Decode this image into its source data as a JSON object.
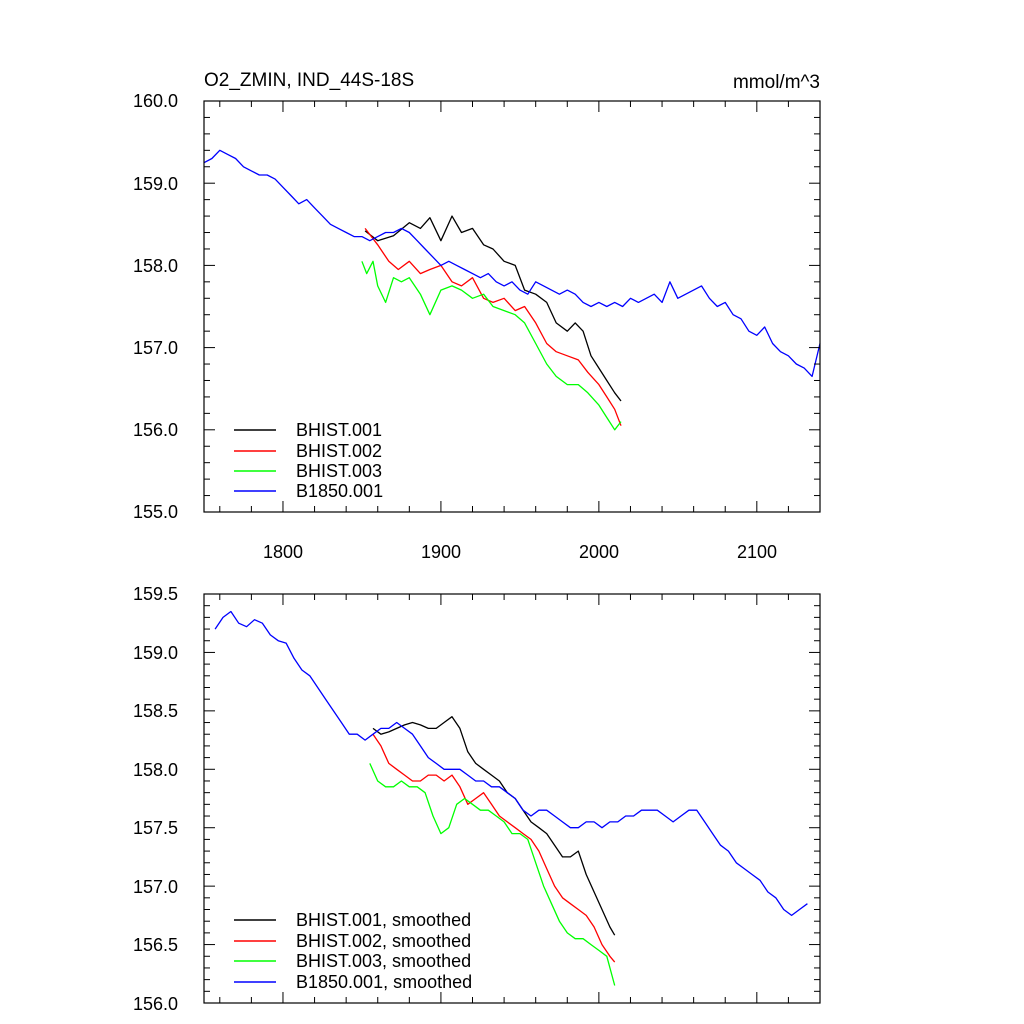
{
  "chart_data": [
    {
      "type": "line",
      "title_left": "O2_ZMIN, IND_44S-18S",
      "title_right": "mmol/m^3",
      "xlim": [
        1750,
        2140
      ],
      "ylim": [
        155.0,
        160.0
      ],
      "xticks": [
        1800,
        1900,
        2000,
        2100
      ],
      "xtick_labels": [
        "1800",
        "1900",
        "2000",
        "2100"
      ],
      "yticks": [
        155.0,
        156.0,
        157.0,
        158.0,
        159.0,
        160.0
      ],
      "ytick_labels": [
        "155.0",
        "156.0",
        "157.0",
        "158.0",
        "159.0",
        "160.0"
      ],
      "legend_position": "bottom-left",
      "series": [
        {
          "name": "BHIST.001",
          "color": "#000000",
          "x": [
            1852,
            1860,
            1870,
            1880,
            1887,
            1893,
            1900,
            1907,
            1913,
            1920,
            1927,
            1933,
            1940,
            1947,
            1953,
            1960,
            1967,
            1973,
            1980,
            1985,
            1990,
            1995,
            2000,
            2005,
            2010,
            2014
          ],
          "y": [
            158.42,
            158.3,
            158.36,
            158.52,
            158.45,
            158.58,
            158.3,
            158.6,
            158.4,
            158.45,
            158.25,
            158.2,
            158.05,
            158.0,
            157.7,
            157.65,
            157.55,
            157.3,
            157.2,
            157.3,
            157.2,
            156.9,
            156.75,
            156.6,
            156.45,
            156.35
          ]
        },
        {
          "name": "BHIST.002",
          "color": "#ff0000",
          "x": [
            1852,
            1860,
            1867,
            1873,
            1880,
            1887,
            1893,
            1900,
            1907,
            1913,
            1920,
            1927,
            1933,
            1940,
            1947,
            1953,
            1960,
            1967,
            1973,
            1980,
            1987,
            1993,
            2000,
            2005,
            2010,
            2014
          ],
          "y": [
            158.45,
            158.25,
            158.05,
            157.95,
            158.05,
            157.9,
            157.95,
            158.0,
            157.8,
            157.75,
            157.85,
            157.6,
            157.55,
            157.6,
            157.45,
            157.5,
            157.3,
            157.05,
            156.95,
            156.9,
            156.85,
            156.7,
            156.55,
            156.4,
            156.25,
            156.05
          ]
        },
        {
          "name": "BHIST.003",
          "color": "#00ff00",
          "x": [
            1850,
            1853,
            1857,
            1860,
            1865,
            1870,
            1875,
            1880,
            1887,
            1893,
            1900,
            1907,
            1913,
            1920,
            1927,
            1933,
            1940,
            1947,
            1953,
            1960,
            1967,
            1973,
            1980,
            1987,
            1993,
            2000,
            2005,
            2010,
            2014
          ],
          "y": [
            158.05,
            157.9,
            158.05,
            157.75,
            157.55,
            157.85,
            157.8,
            157.85,
            157.65,
            157.4,
            157.7,
            157.75,
            157.7,
            157.6,
            157.65,
            157.5,
            157.45,
            157.4,
            157.3,
            157.05,
            156.8,
            156.65,
            156.55,
            156.55,
            156.45,
            156.3,
            156.15,
            156.0,
            156.1
          ]
        },
        {
          "name": "B1850.001",
          "color": "#0000ff",
          "x": [
            1750,
            1755,
            1760,
            1765,
            1770,
            1775,
            1780,
            1785,
            1790,
            1795,
            1800,
            1805,
            1810,
            1815,
            1820,
            1825,
            1830,
            1835,
            1840,
            1845,
            1850,
            1855,
            1860,
            1865,
            1870,
            1875,
            1880,
            1885,
            1890,
            1895,
            1900,
            1905,
            1910,
            1915,
            1920,
            1925,
            1930,
            1935,
            1940,
            1945,
            1950,
            1955,
            1960,
            1965,
            1970,
            1975,
            1980,
            1985,
            1990,
            1995,
            2000,
            2005,
            2010,
            2015,
            2020,
            2025,
            2030,
            2035,
            2040,
            2045,
            2050,
            2055,
            2060,
            2065,
            2070,
            2075,
            2080,
            2085,
            2090,
            2095,
            2100,
            2105,
            2110,
            2115,
            2120,
            2125,
            2130,
            2135,
            2140
          ],
          "y": [
            159.25,
            159.3,
            159.4,
            159.35,
            159.3,
            159.2,
            159.15,
            159.1,
            159.1,
            159.05,
            158.95,
            158.85,
            158.75,
            158.8,
            158.7,
            158.6,
            158.5,
            158.45,
            158.4,
            158.35,
            158.35,
            158.3,
            158.35,
            158.4,
            158.4,
            158.45,
            158.4,
            158.3,
            158.2,
            158.1,
            158.0,
            158.05,
            158.0,
            157.95,
            157.9,
            157.85,
            157.9,
            157.8,
            157.75,
            157.8,
            157.7,
            157.65,
            157.8,
            157.75,
            157.7,
            157.65,
            157.7,
            157.65,
            157.55,
            157.5,
            157.55,
            157.5,
            157.55,
            157.5,
            157.6,
            157.55,
            157.6,
            157.65,
            157.55,
            157.8,
            157.6,
            157.65,
            157.7,
            157.75,
            157.6,
            157.5,
            157.55,
            157.4,
            157.35,
            157.2,
            157.15,
            157.25,
            157.05,
            156.95,
            156.9,
            156.8,
            156.75,
            156.65,
            157.05
          ]
        }
      ]
    },
    {
      "type": "line",
      "xlim": [
        1750,
        2140
      ],
      "ylim": [
        156.0,
        159.5
      ],
      "xticks": [
        1800,
        1900,
        2000,
        2100
      ],
      "yticks": [
        156.0,
        156.5,
        157.0,
        157.5,
        158.0,
        158.5,
        159.0,
        159.5
      ],
      "ytick_labels": [
        "156.0",
        "156.5",
        "157.0",
        "157.5",
        "158.0",
        "158.5",
        "159.0",
        "159.5"
      ],
      "legend_position": "bottom-left",
      "series": [
        {
          "name": "BHIST.001, smoothed",
          "color": "#000000",
          "x": [
            1857,
            1862,
            1867,
            1872,
            1877,
            1882,
            1887,
            1892,
            1897,
            1902,
            1907,
            1912,
            1917,
            1922,
            1927,
            1932,
            1937,
            1942,
            1947,
            1952,
            1957,
            1962,
            1967,
            1972,
            1977,
            1982,
            1987,
            1992,
            1997,
            2002,
            2007,
            2010
          ],
          "y": [
            158.35,
            158.3,
            158.32,
            158.35,
            158.38,
            158.4,
            158.38,
            158.35,
            158.35,
            158.4,
            158.45,
            158.35,
            158.15,
            158.05,
            158.0,
            157.95,
            157.9,
            157.8,
            157.75,
            157.65,
            157.55,
            157.5,
            157.45,
            157.35,
            157.25,
            157.25,
            157.3,
            157.1,
            156.95,
            156.8,
            156.65,
            156.58
          ]
        },
        {
          "name": "BHIST.002, smoothed",
          "color": "#ff0000",
          "x": [
            1857,
            1862,
            1867,
            1872,
            1877,
            1882,
            1887,
            1892,
            1897,
            1902,
            1907,
            1912,
            1917,
            1922,
            1927,
            1932,
            1937,
            1942,
            1947,
            1952,
            1957,
            1962,
            1967,
            1972,
            1977,
            1982,
            1987,
            1992,
            1997,
            2002,
            2007,
            2010
          ],
          "y": [
            158.3,
            158.2,
            158.05,
            158.0,
            157.95,
            157.9,
            157.9,
            157.95,
            157.95,
            157.9,
            157.95,
            157.85,
            157.7,
            157.75,
            157.8,
            157.7,
            157.6,
            157.55,
            157.5,
            157.45,
            157.4,
            157.3,
            157.15,
            157.0,
            156.9,
            156.85,
            156.8,
            156.75,
            156.65,
            156.5,
            156.4,
            156.35
          ]
        },
        {
          "name": "BHIST.003, smoothed",
          "color": "#00ff00",
          "x": [
            1855,
            1860,
            1865,
            1870,
            1875,
            1880,
            1885,
            1890,
            1895,
            1900,
            1905,
            1910,
            1915,
            1920,
            1925,
            1930,
            1935,
            1940,
            1945,
            1950,
            1955,
            1960,
            1965,
            1970,
            1975,
            1980,
            1985,
            1990,
            1995,
            2000,
            2005,
            2010
          ],
          "y": [
            158.05,
            157.9,
            157.85,
            157.85,
            157.9,
            157.85,
            157.85,
            157.8,
            157.6,
            157.45,
            157.5,
            157.7,
            157.75,
            157.7,
            157.65,
            157.65,
            157.6,
            157.55,
            157.45,
            157.45,
            157.4,
            157.2,
            157.0,
            156.85,
            156.7,
            156.6,
            156.55,
            156.55,
            156.5,
            156.45,
            156.4,
            156.15
          ]
        },
        {
          "name": "B1850.001, smoothed",
          "color": "#0000ff",
          "x": [
            1757,
            1762,
            1767,
            1772,
            1777,
            1782,
            1787,
            1792,
            1797,
            1802,
            1807,
            1812,
            1817,
            1822,
            1827,
            1832,
            1837,
            1842,
            1847,
            1852,
            1857,
            1862,
            1867,
            1872,
            1877,
            1882,
            1887,
            1892,
            1897,
            1902,
            1907,
            1912,
            1917,
            1922,
            1927,
            1932,
            1937,
            1942,
            1947,
            1952,
            1957,
            1962,
            1967,
            1972,
            1977,
            1982,
            1987,
            1992,
            1997,
            2002,
            2007,
            2012,
            2017,
            2022,
            2027,
            2032,
            2037,
            2042,
            2047,
            2052,
            2057,
            2062,
            2067,
            2072,
            2077,
            2082,
            2087,
            2092,
            2097,
            2102,
            2107,
            2112,
            2117,
            2122,
            2127,
            2132
          ],
          "y": [
            159.2,
            159.3,
            159.35,
            159.25,
            159.22,
            159.28,
            159.25,
            159.15,
            159.1,
            159.08,
            158.95,
            158.85,
            158.8,
            158.7,
            158.6,
            158.5,
            158.4,
            158.3,
            158.3,
            158.25,
            158.3,
            158.35,
            158.35,
            158.4,
            158.35,
            158.3,
            158.2,
            158.1,
            158.05,
            158.0,
            158.0,
            158.0,
            157.95,
            157.9,
            157.9,
            157.85,
            157.85,
            157.8,
            157.75,
            157.65,
            157.6,
            157.65,
            157.65,
            157.6,
            157.55,
            157.5,
            157.5,
            157.55,
            157.55,
            157.5,
            157.55,
            157.55,
            157.6,
            157.6,
            157.65,
            157.65,
            157.65,
            157.6,
            157.55,
            157.6,
            157.65,
            157.65,
            157.55,
            157.45,
            157.35,
            157.3,
            157.2,
            157.15,
            157.1,
            157.05,
            156.95,
            156.9,
            156.8,
            156.75,
            156.8,
            156.85
          ]
        }
      ]
    }
  ]
}
